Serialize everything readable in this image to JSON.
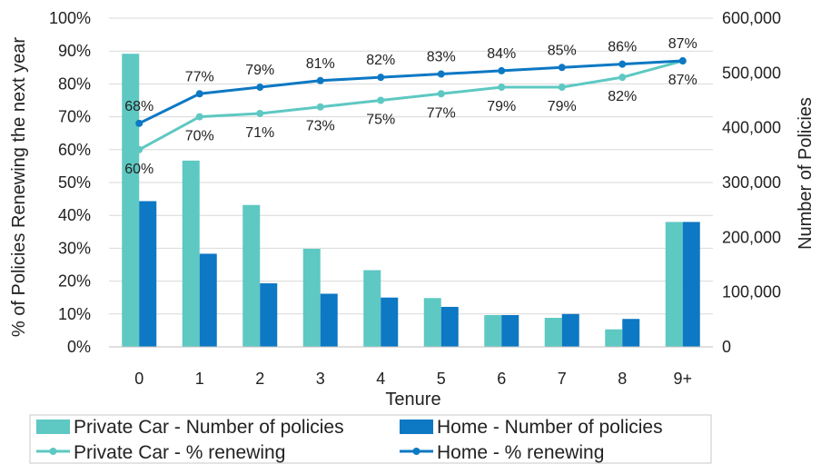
{
  "chart_data": {
    "type": "bar+line",
    "title": "",
    "xlabel": "Tenure",
    "ylabel_left": "% of Policies Renewing the next year",
    "ylabel_right": "Number of Policies",
    "categories": [
      "0",
      "1",
      "2",
      "3",
      "4",
      "5",
      "6",
      "7",
      "8",
      "9+"
    ],
    "y_left_ticks": [
      "0%",
      "10%",
      "20%",
      "30%",
      "40%",
      "50%",
      "60%",
      "70%",
      "80%",
      "90%",
      "100%"
    ],
    "y_right_ticks": [
      "0",
      "100,000",
      "200,000",
      "300,000",
      "400,000",
      "500,000",
      "600,000"
    ],
    "ylim_left": [
      0,
      100
    ],
    "ylim_right": [
      0,
      600000
    ],
    "grid": true,
    "legend_position": "bottom",
    "series": [
      {
        "name": "Private Car - Number of policies",
        "type": "bar",
        "axis": "right",
        "color": "#5ec8c2",
        "values": [
          535000,
          340000,
          259000,
          179000,
          140000,
          89000,
          58000,
          53000,
          32000,
          228000
        ]
      },
      {
        "name": "Home - Number of policies",
        "type": "bar",
        "axis": "right",
        "color": "#0d78c4",
        "values": [
          266000,
          170000,
          116000,
          97000,
          90000,
          73000,
          58000,
          60000,
          51000,
          228000
        ]
      },
      {
        "name": "Private Car - % renewing",
        "type": "line",
        "axis": "left",
        "color": "#5ec8c2",
        "values": [
          60,
          70,
          71,
          73,
          75,
          77,
          79,
          79,
          82,
          87
        ],
        "labels": [
          "60%",
          "70%",
          "71%",
          "73%",
          "75%",
          "77%",
          "79%",
          "79%",
          "82%",
          "87%"
        ]
      },
      {
        "name": "Home - % renewing",
        "type": "line",
        "axis": "left",
        "color": "#0d78c4",
        "values": [
          68,
          77,
          79,
          81,
          82,
          83,
          84,
          85,
          86,
          87
        ],
        "labels": [
          "68%",
          "77%",
          "79%",
          "81%",
          "82%",
          "83%",
          "84%",
          "85%",
          "86%",
          "87%"
        ]
      }
    ]
  }
}
